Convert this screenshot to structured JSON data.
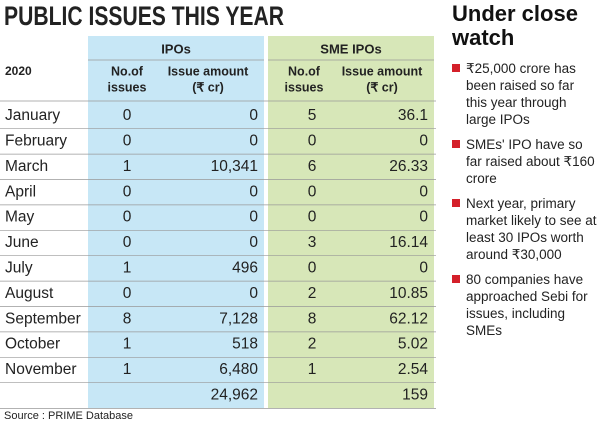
{
  "title": "PUBLIC ISSUES THIS YEAR",
  "table": {
    "groups": [
      "IPOs",
      "SME IPOs"
    ],
    "year": "2020",
    "columns": [
      [
        "No.of",
        "issues"
      ],
      [
        "Issue amount",
        "(₹ cr)"
      ],
      [
        "No.of",
        "issues"
      ],
      [
        "Issue amount",
        "(₹ cr)"
      ]
    ],
    "rows": [
      [
        "January",
        "0",
        "0",
        "5",
        "36.1"
      ],
      [
        "February",
        "0",
        "0",
        "0",
        "0"
      ],
      [
        "March",
        "1",
        "10,341",
        "6",
        "26.33"
      ],
      [
        "April",
        "0",
        "0",
        "0",
        "0"
      ],
      [
        "May",
        "0",
        "0",
        "0",
        "0"
      ],
      [
        "June",
        "0",
        "0",
        "3",
        "16.14"
      ],
      [
        "July",
        "1",
        "496",
        "0",
        "0"
      ],
      [
        "August",
        "0",
        "0",
        "2",
        "10.85"
      ],
      [
        "September",
        "8",
        "7,128",
        "8",
        "62.12"
      ],
      [
        "October",
        "1",
        "518",
        "2",
        "5.02"
      ],
      [
        "November",
        "1",
        "6,480",
        "1",
        "2.54"
      ]
    ],
    "totals": [
      "24,962",
      "159"
    ]
  },
  "source": "Source : PRIME Database",
  "sidebar": {
    "title": "Under close watch",
    "bullets": [
      "₹25,000 crore has been raised so far this year through large IPOs",
      "SMEs' IPO have so far raised about ₹160 crore",
      "Next year, primary market likely to see at least 30 IPOs worth around ₹30,000",
      "80 companies have approached Sebi for issues, including SMEs"
    ]
  }
}
